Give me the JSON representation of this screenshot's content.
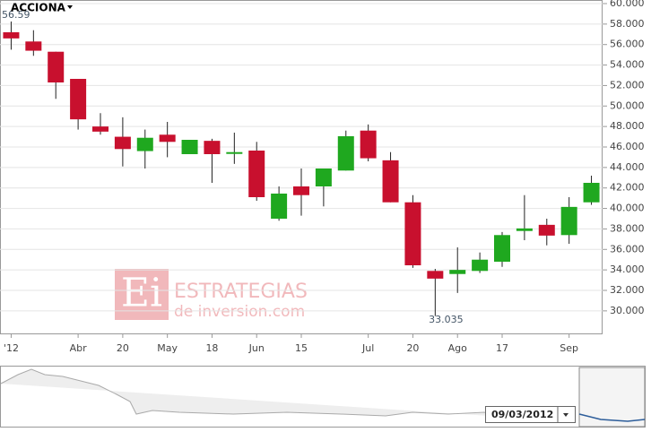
{
  "chart_data": {
    "type": "candlestick",
    "title": "ACCIONA",
    "categories": [
      "'12",
      null,
      null,
      "Abr",
      null,
      "20",
      null,
      "May",
      null,
      "18",
      null,
      "Jun",
      null,
      "15",
      null,
      null,
      "Jul",
      null,
      "20",
      null,
      "Ago",
      null,
      "17",
      null,
      null,
      "Sep",
      null
    ],
    "open": [
      57.2,
      56.3,
      55.3,
      52.65,
      48.0,
      47.0,
      45.6,
      47.2,
      45.3,
      46.6,
      45.5,
      45.65,
      39.0,
      42.15,
      42.15,
      43.7,
      47.6,
      44.7,
      40.6,
      33.9,
      33.6,
      33.9,
      34.8,
      37.8,
      38.4,
      37.4,
      40.6
    ],
    "high": [
      58.25,
      57.4,
      55.3,
      52.65,
      49.3,
      48.9,
      47.7,
      48.45,
      46.7,
      46.8,
      47.4,
      46.5,
      42.15,
      43.9,
      43.9,
      47.6,
      48.2,
      45.5,
      41.3,
      34.1,
      36.2,
      35.7,
      37.7,
      41.3,
      39.0,
      41.1,
      43.2
    ],
    "low": [
      55.5,
      54.9,
      50.7,
      47.7,
      47.2,
      44.1,
      43.9,
      45.0,
      45.3,
      42.5,
      44.35,
      40.75,
      38.8,
      39.3,
      40.2,
      43.7,
      44.6,
      40.6,
      34.2,
      29.5,
      31.75,
      33.7,
      34.3,
      36.9,
      36.4,
      36.55,
      40.35
    ],
    "close": [
      56.6,
      55.4,
      52.3,
      48.7,
      47.5,
      45.8,
      46.9,
      46.5,
      46.7,
      45.3,
      45.5,
      41.1,
      41.45,
      41.3,
      43.9,
      47.05,
      44.9,
      40.6,
      34.45,
      33.15,
      34.0,
      35.0,
      37.4,
      38.05,
      37.35,
      40.15,
      42.5
    ],
    "up_color": "#1fa81f",
    "down_color": "#c8102e",
    "ylim": [
      27.8,
      60.35
    ],
    "yticks": [
      {
        "value": 30,
        "label": "30.000"
      },
      {
        "value": 32,
        "label": "32.000"
      },
      {
        "value": 34,
        "label": "34.000"
      },
      {
        "value": 36,
        "label": "36.000"
      },
      {
        "value": 38,
        "label": "38.000"
      },
      {
        "value": 40,
        "label": "40.000"
      },
      {
        "value": 42,
        "label": "42.000"
      },
      {
        "value": 44,
        "label": "44.000"
      },
      {
        "value": 46,
        "label": "46.000"
      },
      {
        "value": 48,
        "label": "48.000"
      },
      {
        "value": 50,
        "label": "50.000"
      },
      {
        "value": 52,
        "label": "52.000"
      },
      {
        "value": 54,
        "label": "54.000"
      },
      {
        "value": 56,
        "label": "56.000"
      },
      {
        "value": 58,
        "label": "58.000"
      },
      {
        "value": 60,
        "label": "60.000"
      }
    ],
    "grid": true,
    "annotations": [
      {
        "text": "56.59",
        "value": 56.59,
        "index": 0
      },
      {
        "text": "33.035",
        "value": 33.035,
        "index": 19
      }
    ]
  },
  "navigator": {
    "date": "09/03/2012"
  },
  "watermark": {
    "logo": "Ei",
    "line1": "ESTRATEGIAS",
    "line2": "de inversion.com"
  }
}
